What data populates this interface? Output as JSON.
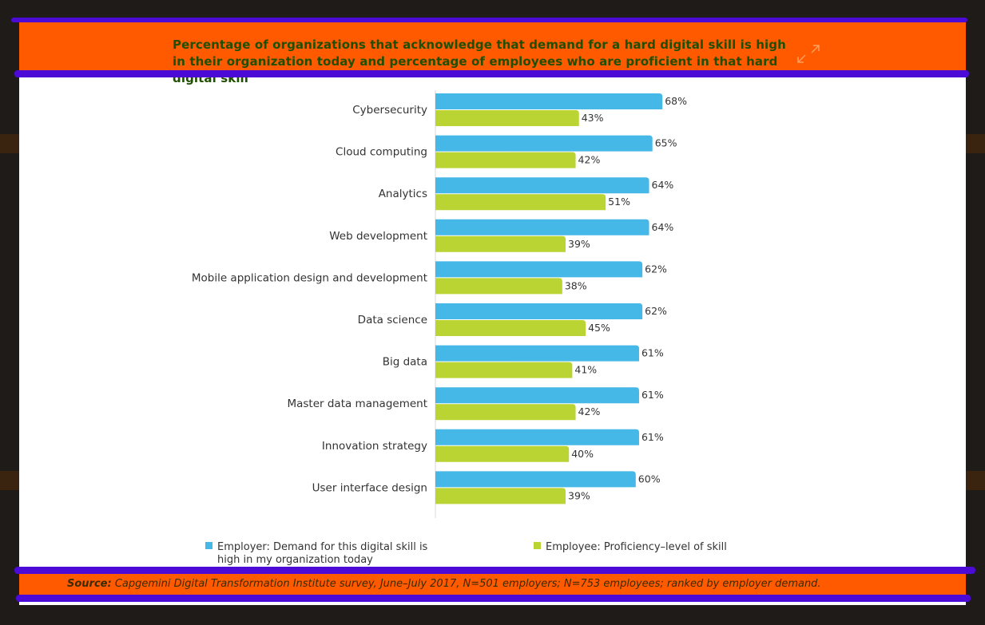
{
  "header": {
    "title": "Percentage of organizations that acknowledge that demand for a hard digital skill is high in their organization today and percentage of employees who are proficient in that hard digital skill",
    "expand_icon": "expand-icon"
  },
  "colors": {
    "accent": "#ff5a00",
    "rule": "#4b0ad6",
    "employer": "#45b8e8",
    "employee": "#b9d433"
  },
  "chart_data": {
    "type": "bar",
    "orientation": "horizontal",
    "categories": [
      "Cybersecurity",
      "Cloud computing",
      "Analytics",
      "Web development",
      "Mobile application design and development",
      "Data science",
      "Big data",
      "Master data management",
      "Innovation strategy",
      "User interface design"
    ],
    "series": [
      {
        "name": "Employer: Demand for this digital skill is high in my organization today",
        "color": "#45b8e8",
        "values": [
          68,
          65,
          64,
          64,
          62,
          62,
          61,
          61,
          61,
          60
        ]
      },
      {
        "name": "Employee: Proficiency–level of skill",
        "color": "#b9d433",
        "values": [
          43,
          42,
          51,
          39,
          38,
          45,
          41,
          42,
          40,
          39
        ]
      }
    ],
    "value_suffix": "%",
    "xlim": [
      0,
      100
    ],
    "grid": false,
    "legend_position": "bottom"
  },
  "legend": {
    "employer_line1": "Employer: Demand for this digital skill is",
    "employer_line2": "high in my organization today",
    "employee": "Employee: Proficiency–level of skill"
  },
  "footer": {
    "source_label": "Source:",
    "source_text": " Capgemini Digital Transformation Institute survey, June–July 2017, N=501 employers; N=753 employees; ranked by employer demand."
  }
}
